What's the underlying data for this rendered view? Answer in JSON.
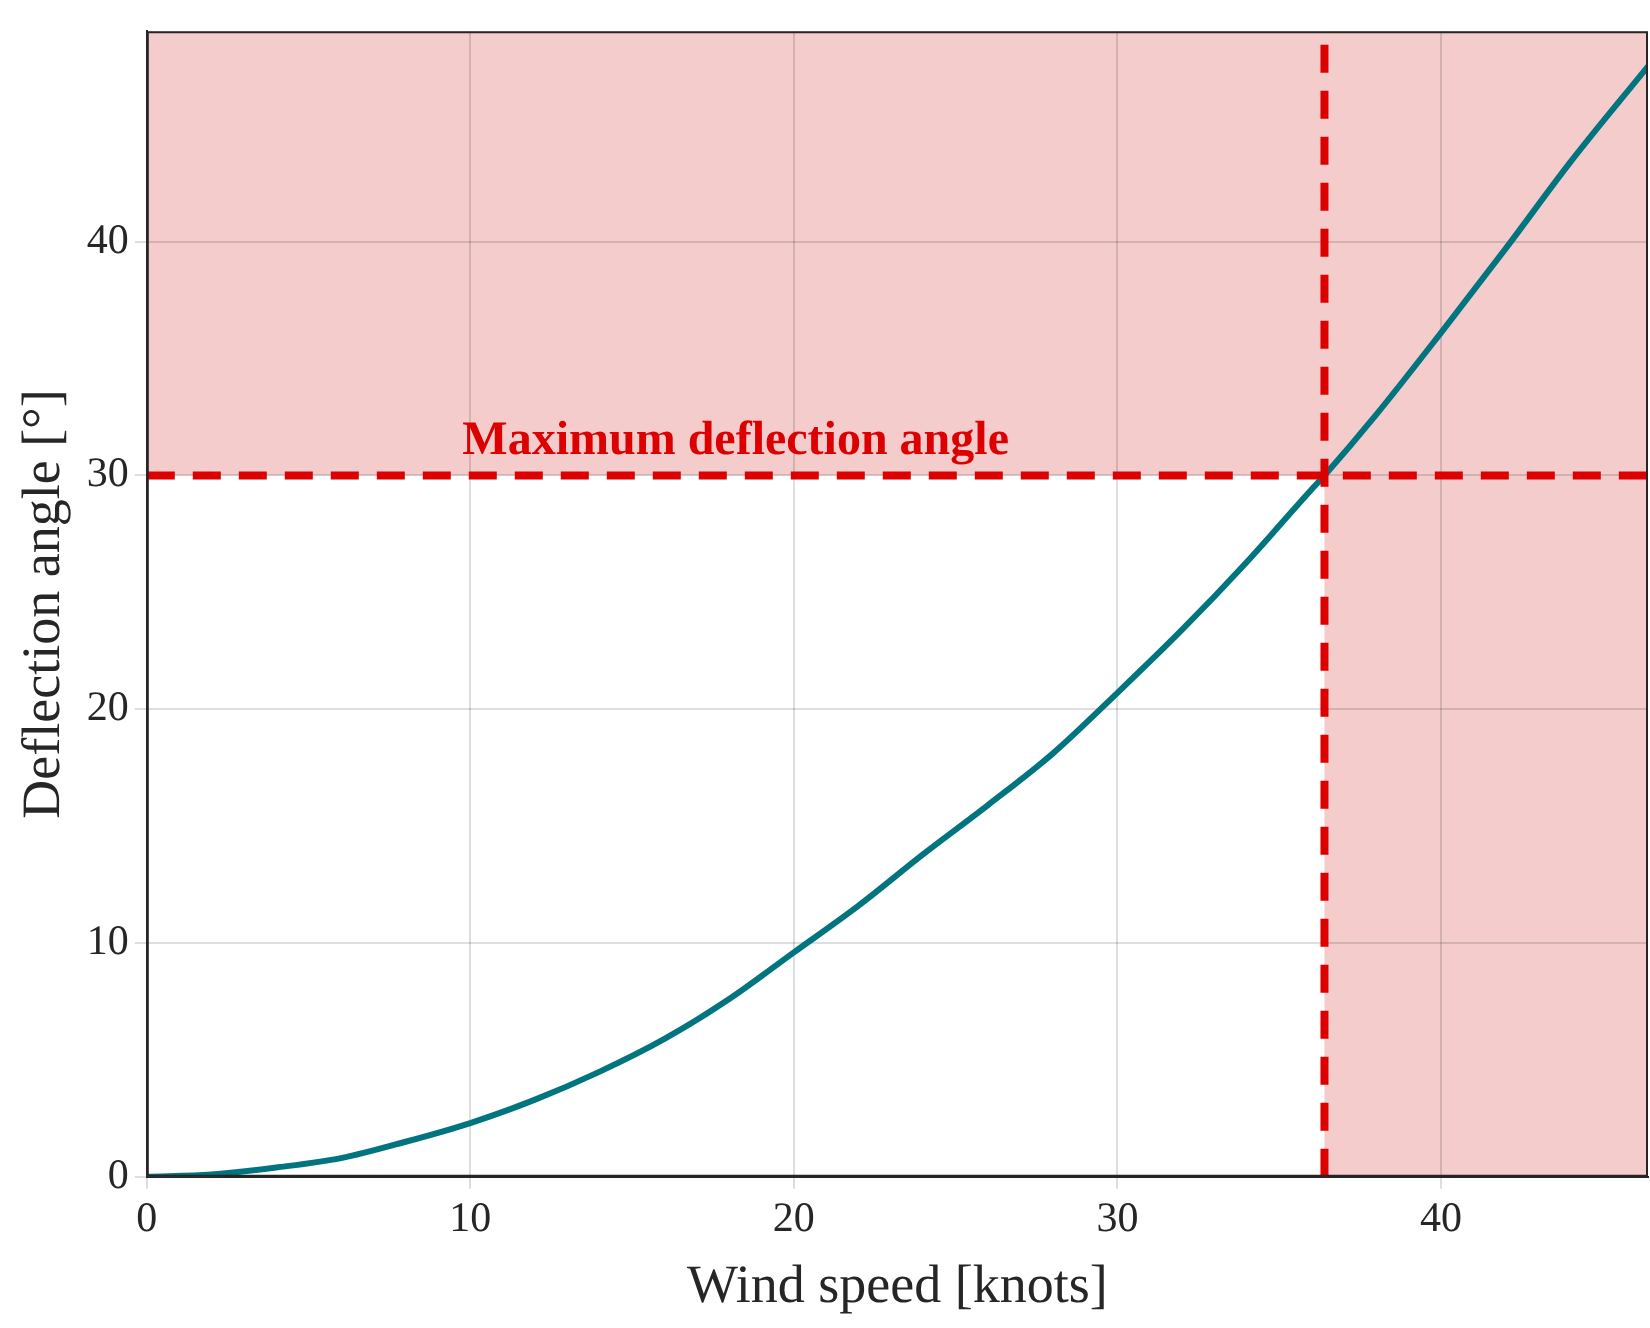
{
  "chart_data": {
    "type": "line",
    "xlabel": "Wind speed [knots]",
    "ylabel": "Deflection angle [°]",
    "x": [
      0,
      2,
      4,
      6,
      8,
      10,
      12,
      14,
      16,
      18,
      20,
      22,
      24,
      26,
      28,
      30,
      32,
      34,
      36,
      36.4,
      38,
      40,
      42,
      44,
      46.4
    ],
    "series": [
      {
        "color": "#00757f",
        "values": [
          0,
          0.1,
          0.4,
          0.8,
          1.5,
          2.3,
          3.3,
          4.5,
          5.9,
          7.6,
          9.6,
          11.6,
          13.8,
          15.9,
          18.1,
          20.7,
          23.4,
          26.3,
          29.4,
          30,
          32.6,
          36.1,
          39.7,
          43.4,
          47.5
        ]
      }
    ],
    "xlim": [
      0,
      46.4
    ],
    "ylim": [
      0,
      49
    ],
    "xticks": [
      0,
      10,
      20,
      30,
      40
    ],
    "yticks": [
      0,
      10,
      20,
      30,
      40
    ],
    "grid": true,
    "marker": "none",
    "line_style": "solid",
    "bands": [
      {
        "axis": "y",
        "from": 30,
        "to": 49,
        "color": "#f4cccc"
      },
      {
        "axis": "x",
        "from": 36.4,
        "to": 46.4,
        "color": "#f4cccc"
      }
    ],
    "ref_lines": [
      {
        "axis": "y",
        "value": 30,
        "label": "Maximum deflection angle",
        "color": "#dd0000",
        "line_style": "dashed"
      },
      {
        "axis": "x",
        "value": 36.4,
        "color": "#dd0000",
        "line_style": "dashed"
      }
    ]
  }
}
